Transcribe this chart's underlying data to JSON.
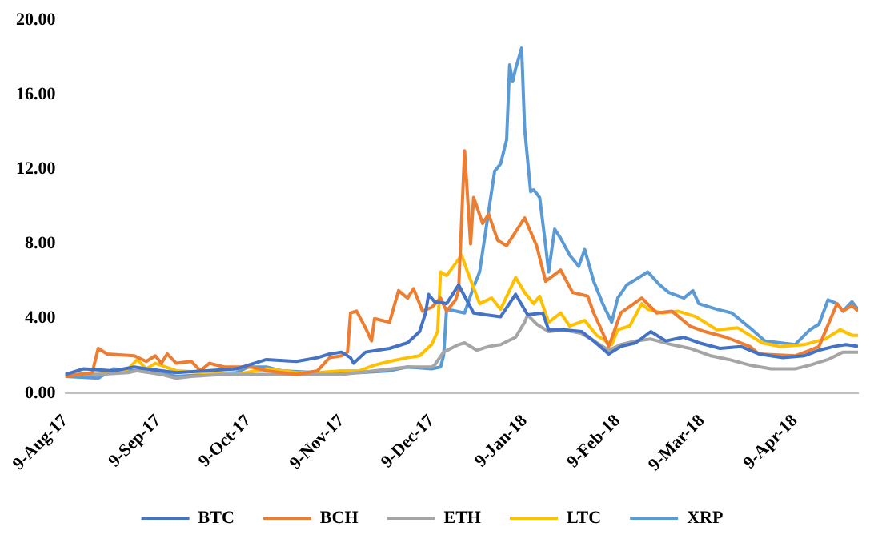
{
  "chart_data": {
    "type": "line",
    "xlim": [
      "2017-08-09",
      "2018-04-30"
    ],
    "xticks": [
      {
        "value": "2017-08-09",
        "label": "9-Aug-17"
      },
      {
        "value": "2017-09-09",
        "label": "9-Sep-17"
      },
      {
        "value": "2017-10-09",
        "label": "9-Oct-17"
      },
      {
        "value": "2017-11-09",
        "label": "9-Nov-17"
      },
      {
        "value": "2017-12-09",
        "label": "9-Dec-17"
      },
      {
        "value": "2018-01-09",
        "label": "9-Jan-18"
      },
      {
        "value": "2018-02-09",
        "label": "9-Feb-18"
      },
      {
        "value": "2018-03-09",
        "label": "9-Mar-18"
      },
      {
        "value": "2018-04-09",
        "label": "9-Apr-18"
      }
    ],
    "ylim": [
      0,
      20
    ],
    "yticks": [
      {
        "value": 0,
        "label": "0.00"
      },
      {
        "value": 4,
        "label": "4.00"
      },
      {
        "value": 8,
        "label": "8.00"
      },
      {
        "value": 12,
        "label": "12.00"
      },
      {
        "value": 16,
        "label": "16.00"
      },
      {
        "value": 20,
        "label": "20.00"
      }
    ],
    "grid": false,
    "legend": "bottom",
    "marker": "none",
    "line_style": "solid",
    "series": [
      {
        "name": "BTC",
        "color": "#4472c4",
        "x": [
          "2017-08-09",
          "2017-08-15",
          "2017-08-25",
          "2017-09-01",
          "2017-09-05",
          "2017-09-15",
          "2017-09-25",
          "2017-10-05",
          "2017-10-09",
          "2017-10-15",
          "2017-10-25",
          "2017-11-01",
          "2017-11-05",
          "2017-11-09",
          "2017-11-12",
          "2017-11-13",
          "2017-11-17",
          "2017-11-25",
          "2017-12-01",
          "2017-12-05",
          "2017-12-07",
          "2017-12-08",
          "2017-12-10",
          "2017-12-14",
          "2017-12-18",
          "2017-12-23",
          "2017-12-27",
          "2018-01-01",
          "2018-01-06",
          "2018-01-10",
          "2018-01-15",
          "2018-01-17",
          "2018-01-22",
          "2018-01-28",
          "2018-02-01",
          "2018-02-06",
          "2018-02-10",
          "2018-02-15",
          "2018-02-20",
          "2018-02-25",
          "2018-03-03",
          "2018-03-08",
          "2018-03-15",
          "2018-03-22",
          "2018-03-28",
          "2018-04-05",
          "2018-04-12",
          "2018-04-17",
          "2018-04-22",
          "2018-04-26",
          "2018-04-30"
        ],
        "values": [
          1.0,
          1.3,
          1.2,
          1.4,
          1.3,
          1.1,
          1.2,
          1.3,
          1.5,
          1.8,
          1.7,
          1.9,
          2.1,
          2.2,
          1.9,
          1.6,
          2.2,
          2.4,
          2.7,
          3.3,
          4.3,
          5.3,
          4.9,
          4.8,
          5.8,
          4.3,
          4.2,
          4.1,
          5.3,
          4.2,
          4.3,
          3.4,
          3.4,
          3.3,
          2.8,
          2.1,
          2.5,
          2.7,
          3.3,
          2.8,
          3.0,
          2.7,
          2.4,
          2.5,
          2.1,
          1.9,
          2.0,
          2.3,
          2.5,
          2.6,
          2.5
        ]
      },
      {
        "name": "BCH",
        "color": "#ed7d31",
        "x": [
          "2017-08-09",
          "2017-08-18",
          "2017-08-20",
          "2017-08-23",
          "2017-09-01",
          "2017-09-05",
          "2017-09-08",
          "2017-09-10",
          "2017-09-12",
          "2017-09-15",
          "2017-09-20",
          "2017-09-23",
          "2017-09-26",
          "2017-10-01",
          "2017-10-10",
          "2017-10-15",
          "2017-10-25",
          "2017-11-01",
          "2017-11-05",
          "2017-11-09",
          "2017-11-11",
          "2017-11-12",
          "2017-11-14",
          "2017-11-17",
          "2017-11-19",
          "2017-11-20",
          "2017-11-25",
          "2017-11-28",
          "2017-12-01",
          "2017-12-03",
          "2017-12-06",
          "2017-12-09",
          "2017-12-12",
          "2017-12-14",
          "2017-12-17",
          "2017-12-18",
          "2017-12-20",
          "2017-12-22",
          "2017-12-23",
          "2017-12-26",
          "2017-12-28",
          "2017-12-31",
          "2018-01-03",
          "2018-01-09",
          "2018-01-13",
          "2018-01-16",
          "2018-01-21",
          "2018-01-25",
          "2018-01-30",
          "2018-02-01",
          "2018-02-03",
          "2018-02-06",
          "2018-02-10",
          "2018-02-17",
          "2018-02-22",
          "2018-02-27",
          "2018-03-05",
          "2018-03-10",
          "2018-03-17",
          "2018-03-25",
          "2018-03-28",
          "2018-04-09",
          "2018-04-14",
          "2018-04-17",
          "2018-04-23",
          "2018-04-25",
          "2018-04-28",
          "2018-04-30"
        ],
        "values": [
          0.9,
          1.1,
          2.4,
          2.1,
          2.0,
          1.7,
          2.0,
          1.6,
          2.1,
          1.6,
          1.7,
          1.2,
          1.6,
          1.4,
          1.4,
          1.2,
          1.0,
          1.2,
          1.9,
          2.0,
          2.2,
          4.3,
          4.4,
          3.5,
          2.8,
          4.0,
          3.8,
          5.5,
          5.1,
          5.6,
          4.4,
          4.6,
          5.1,
          4.4,
          5.0,
          5.5,
          13.0,
          8.0,
          10.5,
          9.1,
          9.6,
          8.2,
          7.9,
          9.4,
          7.9,
          6.0,
          6.6,
          5.4,
          5.2,
          4.3,
          3.6,
          2.5,
          4.3,
          5.1,
          4.3,
          4.4,
          3.6,
          3.3,
          3.0,
          2.5,
          2.1,
          2.0,
          2.3,
          2.5,
          4.8,
          4.4,
          4.7,
          4.4
        ]
      },
      {
        "name": "ETH",
        "color": "#a5a5a5",
        "x": [
          "2017-08-09",
          "2017-08-20",
          "2017-08-30",
          "2017-09-02",
          "2017-09-10",
          "2017-09-15",
          "2017-09-20",
          "2017-10-01",
          "2017-10-15",
          "2017-10-25",
          "2017-11-09",
          "2017-11-20",
          "2017-12-01",
          "2017-12-09",
          "2017-12-10",
          "2017-12-13",
          "2017-12-18",
          "2017-12-20",
          "2017-12-24",
          "2017-12-28",
          "2018-01-01",
          "2018-01-06",
          "2018-01-09",
          "2018-01-10",
          "2018-01-13",
          "2018-01-17",
          "2018-01-22",
          "2018-01-28",
          "2018-02-03",
          "2018-02-06",
          "2018-02-10",
          "2018-02-15",
          "2018-02-20",
          "2018-02-27",
          "2018-03-05",
          "2018-03-12",
          "2018-03-18",
          "2018-03-25",
          "2018-04-01",
          "2018-04-09",
          "2018-04-14",
          "2018-04-20",
          "2018-04-25",
          "2018-04-30"
        ],
        "values": [
          1.0,
          1.0,
          1.1,
          1.2,
          1.0,
          0.8,
          0.9,
          1.0,
          1.0,
          1.0,
          1.0,
          1.2,
          1.4,
          1.4,
          1.5,
          2.2,
          2.6,
          2.7,
          2.3,
          2.5,
          2.6,
          3.0,
          3.8,
          4.2,
          3.7,
          3.3,
          3.4,
          3.2,
          2.6,
          2.3,
          2.6,
          2.8,
          2.9,
          2.6,
          2.4,
          2.0,
          1.8,
          1.5,
          1.3,
          1.3,
          1.5,
          1.8,
          2.2,
          2.2
        ]
      },
      {
        "name": "LTC",
        "color": "#ffc000",
        "x": [
          "2017-08-09",
          "2017-08-20",
          "2017-08-28",
          "2017-08-30",
          "2017-09-02",
          "2017-09-05",
          "2017-09-08",
          "2017-09-15",
          "2017-09-25",
          "2017-10-05",
          "2017-10-15",
          "2017-10-25",
          "2017-11-01",
          "2017-11-09",
          "2017-11-15",
          "2017-11-20",
          "2017-11-25",
          "2017-12-01",
          "2017-12-05",
          "2017-12-09",
          "2017-12-11",
          "2017-12-12",
          "2017-12-14",
          "2017-12-19",
          "2017-12-21",
          "2017-12-25",
          "2017-12-29",
          "2018-01-01",
          "2018-01-06",
          "2018-01-09",
          "2018-01-12",
          "2018-01-14",
          "2018-01-17",
          "2018-01-21",
          "2018-01-24",
          "2018-01-29",
          "2018-02-02",
          "2018-02-07",
          "2018-02-09",
          "2018-02-13",
          "2018-02-17",
          "2018-02-19",
          "2018-02-24",
          "2018-03-01",
          "2018-03-07",
          "2018-03-14",
          "2018-03-21",
          "2018-03-29",
          "2018-04-04",
          "2018-04-12",
          "2018-04-19",
          "2018-04-24",
          "2018-04-28",
          "2018-04-30"
        ],
        "values": [
          1.0,
          1.0,
          1.2,
          1.3,
          1.8,
          1.3,
          1.6,
          1.2,
          1.1,
          1.0,
          1.3,
          1.1,
          1.1,
          1.2,
          1.2,
          1.5,
          1.7,
          1.9,
          2.0,
          2.6,
          3.3,
          6.5,
          6.3,
          7.4,
          6.5,
          4.8,
          5.1,
          4.5,
          6.2,
          5.4,
          4.8,
          5.2,
          3.8,
          4.3,
          3.6,
          3.9,
          3.1,
          2.6,
          3.4,
          3.6,
          4.8,
          4.5,
          4.3,
          4.4,
          4.1,
          3.4,
          3.5,
          2.7,
          2.5,
          2.6,
          2.9,
          3.4,
          3.1,
          3.1
        ]
      },
      {
        "name": "XRP",
        "color": "#5b9bd5",
        "x": [
          "2017-08-09",
          "2017-08-20",
          "2017-08-25",
          "2017-09-01",
          "2017-09-05",
          "2017-09-15",
          "2017-09-25",
          "2017-10-05",
          "2017-10-09",
          "2017-10-15",
          "2017-10-20",
          "2017-11-01",
          "2017-11-15",
          "2017-11-25",
          "2017-12-01",
          "2017-12-09",
          "2017-12-12",
          "2017-12-13",
          "2017-12-14",
          "2017-12-20",
          "2017-12-23",
          "2017-12-25",
          "2017-12-30",
          "2018-01-01",
          "2018-01-03",
          "2018-01-04",
          "2018-01-05",
          "2018-01-06",
          "2018-01-08",
          "2018-01-09",
          "2018-01-11",
          "2018-01-12",
          "2018-01-14",
          "2018-01-16",
          "2018-01-17",
          "2018-01-19",
          "2018-01-21",
          "2018-01-24",
          "2018-01-27",
          "2018-01-29",
          "2018-02-01",
          "2018-02-04",
          "2018-02-07",
          "2018-02-09",
          "2018-02-12",
          "2018-02-15",
          "2018-02-19",
          "2018-02-23",
          "2018-02-26",
          "2018-03-03",
          "2018-03-06",
          "2018-03-08",
          "2018-03-14",
          "2018-03-19",
          "2018-03-25",
          "2018-03-30",
          "2018-04-04",
          "2018-04-09",
          "2018-04-14",
          "2018-04-17",
          "2018-04-20",
          "2018-04-23",
          "2018-04-25",
          "2018-04-28",
          "2018-04-30"
        ],
        "values": [
          0.9,
          0.8,
          1.3,
          1.2,
          1.3,
          0.9,
          1.0,
          1.1,
          1.4,
          1.4,
          1.2,
          1.1,
          1.1,
          1.2,
          1.4,
          1.3,
          1.4,
          2.0,
          4.5,
          4.3,
          5.7,
          6.5,
          11.9,
          12.3,
          13.6,
          17.6,
          16.7,
          17.4,
          18.5,
          14.2,
          10.8,
          10.9,
          10.5,
          7.9,
          6.5,
          8.8,
          8.3,
          7.4,
          6.8,
          7.7,
          6.0,
          4.8,
          3.8,
          5.1,
          5.8,
          6.1,
          6.5,
          5.8,
          5.4,
          5.1,
          5.5,
          4.8,
          4.5,
          4.3,
          3.5,
          2.8,
          2.7,
          2.6,
          3.4,
          3.7,
          5.0,
          4.8,
          4.4,
          4.9,
          4.5
        ]
      }
    ]
  }
}
